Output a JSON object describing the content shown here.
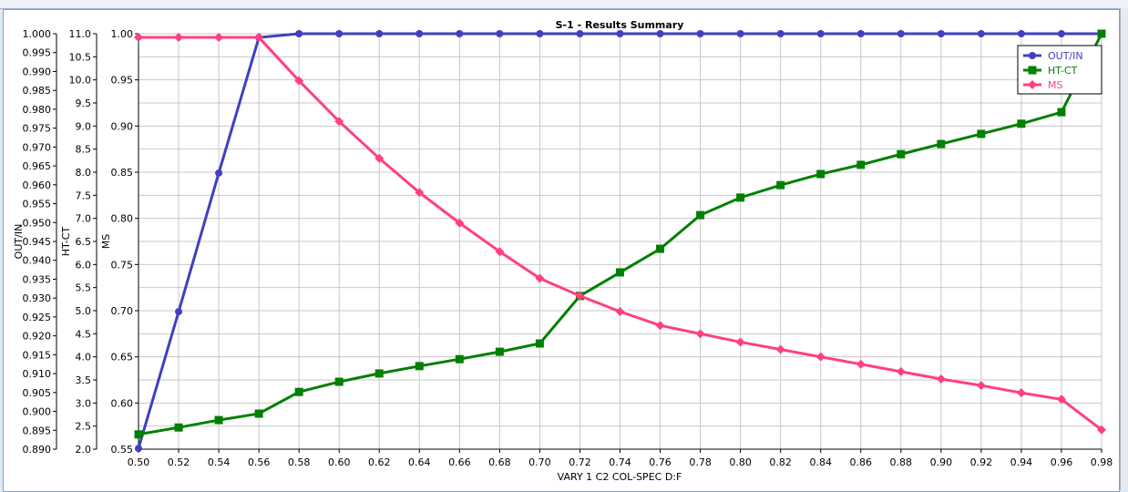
{
  "chart_data": {
    "type": "line",
    "title": "S-1 - Results Summary",
    "xlabel": "VARY   1 C2      COL-SPEC D:F",
    "x": [
      0.5,
      0.52,
      0.54,
      0.56,
      0.58,
      0.6,
      0.62,
      0.64,
      0.66,
      0.68,
      0.7,
      0.72,
      0.74,
      0.76,
      0.78,
      0.8,
      0.82,
      0.84,
      0.86,
      0.88,
      0.9,
      0.92,
      0.94,
      0.96,
      0.98
    ],
    "xlim": [
      0.5,
      0.98
    ],
    "xticks": [
      "0.50",
      "0.52",
      "0.54",
      "0.56",
      "0.58",
      "0.60",
      "0.62",
      "0.64",
      "0.66",
      "0.68",
      "0.70",
      "0.72",
      "0.74",
      "0.76",
      "0.78",
      "0.80",
      "0.82",
      "0.84",
      "0.86",
      "0.88",
      "0.90",
      "0.92",
      "0.94",
      "0.96",
      "0.98"
    ],
    "grid": true,
    "legend": "top-right",
    "axes": [
      {
        "label": "OUT/IN",
        "ylim": [
          0.89,
          1.0
        ],
        "step": 0.005,
        "decimals": 3
      },
      {
        "label": "HT-CT",
        "ylim": [
          2.0,
          11.0
        ],
        "step": 0.5,
        "decimals": 1
      },
      {
        "label": "MS",
        "ylim": [
          0.55,
          1.0
        ],
        "step": 0.05,
        "decimals": 2
      }
    ],
    "series": [
      {
        "name": "OUT/IN",
        "axis": 0,
        "color": "#4040c0",
        "marker": "circle",
        "values": [
          0.8902,
          0.9264,
          0.9631,
          0.999,
          1.0,
          1.0,
          1.0,
          1.0,
          1.0,
          1.0,
          1.0,
          1.0,
          1.0,
          1.0,
          1.0,
          1.0,
          1.0,
          1.0,
          1.0,
          1.0,
          1.0,
          1.0,
          1.0,
          1.0,
          1.0
        ]
      },
      {
        "name": "HT-CT",
        "axis": 1,
        "color": "#008000",
        "marker": "square",
        "values": [
          2.32,
          2.47,
          2.63,
          2.77,
          3.24,
          3.46,
          3.64,
          3.8,
          3.95,
          4.11,
          4.29,
          5.32,
          5.83,
          6.34,
          7.07,
          7.45,
          7.72,
          7.96,
          8.16,
          8.39,
          8.61,
          8.83,
          9.05,
          9.3,
          11.0
        ]
      },
      {
        "name": "MS",
        "axis": 2,
        "color": "#ff4080",
        "marker": "diamond",
        "values": [
          0.996,
          0.996,
          0.996,
          0.996,
          0.949,
          0.905,
          0.865,
          0.828,
          0.795,
          0.764,
          0.735,
          0.716,
          0.699,
          0.684,
          0.675,
          0.666,
          0.658,
          0.65,
          0.642,
          0.634,
          0.626,
          0.619,
          0.611,
          0.604,
          0.571
        ]
      }
    ]
  }
}
